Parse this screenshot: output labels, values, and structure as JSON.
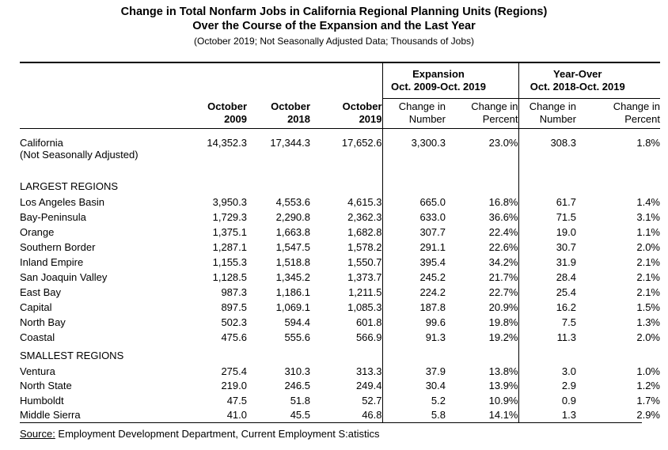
{
  "title": {
    "line1": "Change in Total Nonfarm Jobs in California Regional Planning Units (Regions)",
    "line2": "Over the Course of the Expansion and the Last Year",
    "line3": "(October 2019; Not Seasonally Adjusted Data; Thousands of Jobs)"
  },
  "table": {
    "group_headers": {
      "expansion": {
        "line1": "Expansion",
        "line2": "Oct. 2009-Oct. 2019"
      },
      "year_over": {
        "line1": "Year-Over",
        "line2": "Oct. 2018-Oct. 2019"
      }
    },
    "column_headers": {
      "oct2009": {
        "line1": "October",
        "line2": "2009"
      },
      "oct2018": {
        "line1": "October",
        "line2": "2018"
      },
      "oct2019": {
        "line1": "October",
        "line2": "2019"
      },
      "exp_change_number": {
        "line1": "Change in",
        "line2": "Number"
      },
      "exp_change_percent": {
        "line1": "Change in",
        "line2": "Percent"
      },
      "yoy_change_number": {
        "line1": "Change in",
        "line2": "Number"
      },
      "yoy_change_percent": {
        "line1": "Change in",
        "line2": "Percent"
      }
    },
    "california": {
      "line1": "California",
      "line2": "(Not Seasonally Adjusted)",
      "values": [
        "14,352.3",
        "17,344.3",
        "17,652.6",
        "3,300.3",
        "23.0%",
        "308.3",
        "1.8%"
      ]
    },
    "sections": [
      {
        "label": "LARGEST REGIONS",
        "rows": [
          {
            "name": "Los Angeles Basin",
            "values": [
              "3,950.3",
              "4,553.6",
              "4,615.3",
              "665.0",
              "16.8%",
              "61.7",
              "1.4%"
            ]
          },
          {
            "name": "Bay-Peninsula",
            "values": [
              "1,729.3",
              "2,290.8",
              "2,362.3",
              "633.0",
              "36.6%",
              "71.5",
              "3.1%"
            ]
          },
          {
            "name": "Orange",
            "values": [
              "1,375.1",
              "1,663.8",
              "1,682.8",
              "307.7",
              "22.4%",
              "19.0",
              "1.1%"
            ]
          },
          {
            "name": "Southern Border",
            "values": [
              "1,287.1",
              "1,547.5",
              "1,578.2",
              "291.1",
              "22.6%",
              "30.7",
              "2.0%"
            ]
          },
          {
            "name": "Inland Empire",
            "values": [
              "1,155.3",
              "1,518.8",
              "1,550.7",
              "395.4",
              "34.2%",
              "31.9",
              "2.1%"
            ]
          },
          {
            "name": "San Joaquin Valley",
            "values": [
              "1,128.5",
              "1,345.2",
              "1,373.7",
              "245.2",
              "21.7%",
              "28.4",
              "2.1%"
            ]
          },
          {
            "name": "East Bay",
            "values": [
              "987.3",
              "1,186.1",
              "1,211.5",
              "224.2",
              "22.7%",
              "25.4",
              "2.1%"
            ]
          },
          {
            "name": "Capital",
            "values": [
              "897.5",
              "1,069.1",
              "1,085.3",
              "187.8",
              "20.9%",
              "16.2",
              "1.5%"
            ]
          },
          {
            "name": "North Bay",
            "values": [
              "502.3",
              "594.4",
              "601.8",
              "99.6",
              "19.8%",
              "7.5",
              "1.3%"
            ]
          },
          {
            "name": "Coastal",
            "values": [
              "475.6",
              "555.6",
              "566.9",
              "91.3",
              "19.2%",
              "11.3",
              "2.0%"
            ]
          }
        ]
      },
      {
        "label": "SMALLEST REGIONS",
        "rows": [
          {
            "name": "Ventura",
            "values": [
              "275.4",
              "310.3",
              "313.3",
              "37.9",
              "13.8%",
              "3.0",
              "1.0%"
            ]
          },
          {
            "name": "North State",
            "values": [
              "219.0",
              "246.5",
              "249.4",
              "30.4",
              "13.9%",
              "2.9",
              "1.2%"
            ]
          },
          {
            "name": "Humboldt",
            "values": [
              "47.5",
              "51.8",
              "52.7",
              "5.2",
              "10.9%",
              "0.9",
              "1.7%"
            ]
          },
          {
            "name": "Middle Sierra",
            "values": [
              "41.0",
              "45.5",
              "46.8",
              "5.8",
              "14.1%",
              "1.3",
              "2.9%"
            ]
          }
        ]
      }
    ]
  },
  "source": {
    "label": "Source:",
    "text": " Employment Development Department, Current Employment S:atistics"
  }
}
